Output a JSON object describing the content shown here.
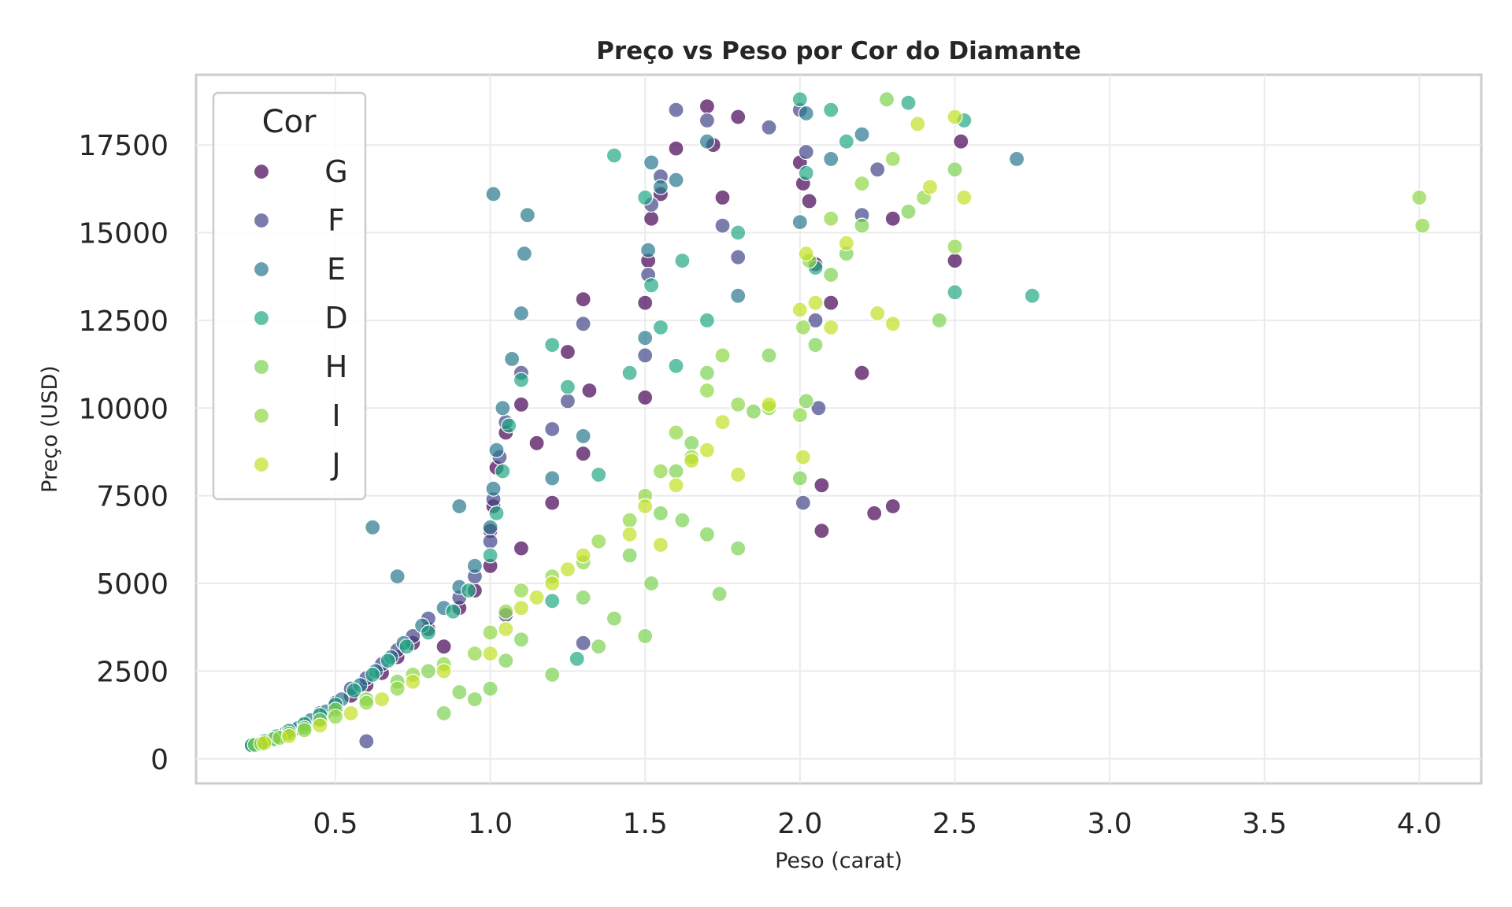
{
  "chart_data": {
    "type": "scatter",
    "title": "Preço vs Peso por Cor do Diamante",
    "xlabel": "Peso (carat)",
    "ylabel": "Preço (USD)",
    "xlim": [
      0.05,
      4.2
    ],
    "ylim": [
      -700,
      19500
    ],
    "xticks": [
      0.5,
      1.0,
      1.5,
      2.0,
      2.5,
      3.0,
      3.5,
      4.0
    ],
    "xtick_labels": [
      "0.5",
      "1.0",
      "1.5",
      "2.0",
      "2.5",
      "3.0",
      "3.5",
      "4.0"
    ],
    "yticks": [
      0,
      2500,
      5000,
      7500,
      10000,
      12500,
      15000,
      17500
    ],
    "ytick_labels": [
      "0",
      "2500",
      "5000",
      "7500",
      "10000",
      "12500",
      "15000",
      "17500"
    ],
    "grid": true,
    "point_alpha": 0.7,
    "legend": {
      "title": "Cor",
      "placement": "upper-left"
    },
    "series": [
      {
        "name": "G",
        "color": "#440154",
        "points": [
          [
            0.23,
            400
          ],
          [
            0.27,
            480
          ],
          [
            0.3,
            560
          ],
          [
            0.33,
            700
          ],
          [
            0.36,
            820
          ],
          [
            0.4,
            950
          ],
          [
            0.45,
            1150
          ],
          [
            0.5,
            1500
          ],
          [
            0.55,
            1800
          ],
          [
            0.6,
            2100
          ],
          [
            0.65,
            2450
          ],
          [
            0.7,
            2900
          ],
          [
            0.75,
            3300
          ],
          [
            0.8,
            3700
          ],
          [
            0.9,
            4300
          ],
          [
            0.95,
            4800
          ],
          [
            1.0,
            5500
          ],
          [
            1.0,
            6500
          ],
          [
            1.01,
            7200
          ],
          [
            1.02,
            8300
          ],
          [
            1.05,
            9300
          ],
          [
            1.1,
            10100
          ],
          [
            1.15,
            9000
          ],
          [
            1.2,
            7300
          ],
          [
            1.25,
            11600
          ],
          [
            1.3,
            13100
          ],
          [
            1.32,
            10500
          ],
          [
            1.5,
            10300
          ],
          [
            1.5,
            13000
          ],
          [
            1.51,
            14200
          ],
          [
            1.52,
            15400
          ],
          [
            1.55,
            16100
          ],
          [
            1.6,
            17400
          ],
          [
            1.7,
            18600
          ],
          [
            1.72,
            17500
          ],
          [
            1.75,
            16000
          ],
          [
            1.8,
            18300
          ],
          [
            2.0,
            17000
          ],
          [
            2.01,
            16400
          ],
          [
            2.03,
            15900
          ],
          [
            2.05,
            14100
          ],
          [
            2.1,
            13000
          ],
          [
            2.2,
            11000
          ],
          [
            2.3,
            15400
          ],
          [
            2.5,
            14200
          ],
          [
            2.52,
            17600
          ],
          [
            2.07,
            7800
          ],
          [
            2.07,
            6500
          ],
          [
            2.24,
            7000
          ],
          [
            2.3,
            7200
          ],
          [
            0.85,
            3200
          ],
          [
            1.1,
            6000
          ],
          [
            1.3,
            8700
          ]
        ]
      },
      {
        "name": "F",
        "color": "#414487",
        "points": [
          [
            0.24,
            420
          ],
          [
            0.28,
            520
          ],
          [
            0.32,
            650
          ],
          [
            0.35,
            780
          ],
          [
            0.4,
            1000
          ],
          [
            0.45,
            1300
          ],
          [
            0.5,
            1600
          ],
          [
            0.55,
            2000
          ],
          [
            0.6,
            2300
          ],
          [
            0.65,
            2700
          ],
          [
            0.7,
            3100
          ],
          [
            0.75,
            3500
          ],
          [
            0.8,
            4000
          ],
          [
            0.9,
            4600
          ],
          [
            0.95,
            5200
          ],
          [
            1.0,
            6200
          ],
          [
            1.01,
            7400
          ],
          [
            1.03,
            8600
          ],
          [
            1.05,
            9600
          ],
          [
            1.1,
            11000
          ],
          [
            1.2,
            9400
          ],
          [
            1.25,
            10200
          ],
          [
            1.3,
            12400
          ],
          [
            1.5,
            11500
          ],
          [
            1.51,
            13800
          ],
          [
            1.52,
            15800
          ],
          [
            1.55,
            16600
          ],
          [
            1.6,
            18500
          ],
          [
            1.7,
            18200
          ],
          [
            1.75,
            15200
          ],
          [
            1.8,
            14300
          ],
          [
            1.9,
            18000
          ],
          [
            2.0,
            18500
          ],
          [
            2.02,
            17300
          ],
          [
            2.05,
            12500
          ],
          [
            2.06,
            10000
          ],
          [
            2.01,
            7300
          ],
          [
            2.2,
            15500
          ],
          [
            2.25,
            16800
          ],
          [
            0.6,
            500
          ],
          [
            1.3,
            3300
          ],
          [
            1.05,
            4100
          ]
        ]
      },
      {
        "name": "E",
        "color": "#2a788e",
        "points": [
          [
            0.23,
            380
          ],
          [
            0.26,
            450
          ],
          [
            0.3,
            600
          ],
          [
            0.34,
            740
          ],
          [
            0.38,
            880
          ],
          [
            0.42,
            1100
          ],
          [
            0.47,
            1350
          ],
          [
            0.52,
            1700
          ],
          [
            0.58,
            2100
          ],
          [
            0.63,
            2500
          ],
          [
            0.68,
            2900
          ],
          [
            0.72,
            3300
          ],
          [
            0.78,
            3800
          ],
          [
            0.85,
            4300
          ],
          [
            0.9,
            4900
          ],
          [
            0.95,
            5500
          ],
          [
            1.0,
            6600
          ],
          [
            1.01,
            7700
          ],
          [
            1.02,
            8800
          ],
          [
            1.04,
            10000
          ],
          [
            1.07,
            11400
          ],
          [
            1.1,
            12700
          ],
          [
            1.11,
            14400
          ],
          [
            1.12,
            15500
          ],
          [
            1.01,
            16100
          ],
          [
            1.2,
            8000
          ],
          [
            1.3,
            9200
          ],
          [
            1.5,
            12000
          ],
          [
            1.51,
            14500
          ],
          [
            1.52,
            17000
          ],
          [
            1.55,
            16300
          ],
          [
            1.6,
            16500
          ],
          [
            1.7,
            17600
          ],
          [
            1.8,
            13200
          ],
          [
            2.0,
            15300
          ],
          [
            2.02,
            18400
          ],
          [
            2.1,
            17100
          ],
          [
            2.2,
            17800
          ],
          [
            2.7,
            17100
          ],
          [
            0.62,
            6600
          ],
          [
            0.9,
            7200
          ],
          [
            0.7,
            5200
          ]
        ]
      },
      {
        "name": "D",
        "color": "#22a884",
        "points": [
          [
            0.23,
            390
          ],
          [
            0.27,
            500
          ],
          [
            0.31,
            640
          ],
          [
            0.35,
            800
          ],
          [
            0.4,
            990
          ],
          [
            0.45,
            1250
          ],
          [
            0.5,
            1550
          ],
          [
            0.56,
            1950
          ],
          [
            0.62,
            2400
          ],
          [
            0.67,
            2800
          ],
          [
            0.73,
            3200
          ],
          [
            0.8,
            3600
          ],
          [
            0.88,
            4200
          ],
          [
            0.93,
            4800
          ],
          [
            1.0,
            5800
          ],
          [
            1.02,
            7000
          ],
          [
            1.04,
            8200
          ],
          [
            1.06,
            9500
          ],
          [
            1.1,
            10800
          ],
          [
            1.2,
            11800
          ],
          [
            1.25,
            10600
          ],
          [
            1.4,
            17200
          ],
          [
            1.5,
            16000
          ],
          [
            1.52,
            13500
          ],
          [
            1.55,
            12300
          ],
          [
            1.6,
            11200
          ],
          [
            1.62,
            14200
          ],
          [
            1.7,
            12500
          ],
          [
            1.8,
            15000
          ],
          [
            2.0,
            18800
          ],
          [
            2.02,
            16700
          ],
          [
            2.05,
            14000
          ],
          [
            2.1,
            18500
          ],
          [
            2.15,
            17600
          ],
          [
            2.35,
            18700
          ],
          [
            2.53,
            18200
          ],
          [
            2.5,
            13300
          ],
          [
            2.75,
            13200
          ],
          [
            1.45,
            11000
          ],
          [
            1.35,
            8100
          ],
          [
            1.2,
            4500
          ],
          [
            1.28,
            2850
          ]
        ]
      },
      {
        "name": "H",
        "color": "#7ad151",
        "points": [
          [
            0.24,
            400
          ],
          [
            0.3,
            560
          ],
          [
            0.35,
            720
          ],
          [
            0.4,
            880
          ],
          [
            0.45,
            1100
          ],
          [
            0.5,
            1400
          ],
          [
            0.6,
            1700
          ],
          [
            0.7,
            2200
          ],
          [
            0.8,
            2500
          ],
          [
            0.85,
            1300
          ],
          [
            0.9,
            1900
          ],
          [
            0.95,
            1700
          ],
          [
            1.0,
            2000
          ],
          [
            1.05,
            2800
          ],
          [
            1.1,
            3400
          ],
          [
            1.2,
            2400
          ],
          [
            1.3,
            4600
          ],
          [
            1.35,
            3200
          ],
          [
            1.4,
            4000
          ],
          [
            1.45,
            5800
          ],
          [
            1.5,
            3500
          ],
          [
            1.52,
            5000
          ],
          [
            1.55,
            7000
          ],
          [
            1.6,
            8200
          ],
          [
            1.62,
            6800
          ],
          [
            1.7,
            6400
          ],
          [
            1.74,
            4700
          ],
          [
            1.8,
            6000
          ],
          [
            1.85,
            9900
          ],
          [
            1.9,
            11500
          ],
          [
            2.0,
            8000
          ],
          [
            2.02,
            10200
          ],
          [
            2.05,
            11800
          ],
          [
            2.1,
            13800
          ],
          [
            2.15,
            14400
          ],
          [
            2.2,
            15200
          ],
          [
            2.28,
            18800
          ],
          [
            2.35,
            15600
          ],
          [
            2.45,
            12500
          ],
          [
            2.5,
            16800
          ],
          [
            1.65,
            9000
          ],
          [
            1.7,
            11000
          ]
        ]
      },
      {
        "name": "I",
        "color": "#8fd744",
        "points": [
          [
            0.26,
            430
          ],
          [
            0.32,
            600
          ],
          [
            0.4,
            820
          ],
          [
            0.5,
            1200
          ],
          [
            0.6,
            1600
          ],
          [
            0.7,
            2000
          ],
          [
            0.75,
            2400
          ],
          [
            0.85,
            2700
          ],
          [
            0.95,
            3000
          ],
          [
            1.0,
            3600
          ],
          [
            1.05,
            4200
          ],
          [
            1.1,
            4800
          ],
          [
            1.2,
            5200
          ],
          [
            1.3,
            5600
          ],
          [
            1.35,
            6200
          ],
          [
            1.45,
            6800
          ],
          [
            1.5,
            7500
          ],
          [
            1.55,
            8200
          ],
          [
            1.6,
            9300
          ],
          [
            1.65,
            8600
          ],
          [
            1.7,
            10500
          ],
          [
            1.75,
            11500
          ],
          [
            1.8,
            10100
          ],
          [
            1.9,
            10000
          ],
          [
            2.0,
            9800
          ],
          [
            2.01,
            12300
          ],
          [
            2.03,
            14200
          ],
          [
            2.1,
            15400
          ],
          [
            2.2,
            16400
          ],
          [
            2.3,
            17100
          ],
          [
            2.4,
            16000
          ],
          [
            2.5,
            14600
          ],
          [
            4.0,
            16000
          ],
          [
            4.01,
            15200
          ]
        ]
      },
      {
        "name": "J",
        "color": "#c2df23",
        "points": [
          [
            0.27,
            450
          ],
          [
            0.35,
            650
          ],
          [
            0.45,
            950
          ],
          [
            0.55,
            1300
          ],
          [
            0.65,
            1700
          ],
          [
            0.75,
            2200
          ],
          [
            0.85,
            2500
          ],
          [
            1.0,
            3000
          ],
          [
            1.05,
            3700
          ],
          [
            1.1,
            4300
          ],
          [
            1.15,
            4600
          ],
          [
            1.2,
            5000
          ],
          [
            1.25,
            5400
          ],
          [
            1.3,
            5800
          ],
          [
            1.45,
            6400
          ],
          [
            1.5,
            7200
          ],
          [
            1.55,
            6100
          ],
          [
            1.6,
            7800
          ],
          [
            1.65,
            8500
          ],
          [
            1.7,
            8800
          ],
          [
            1.75,
            9600
          ],
          [
            1.8,
            8100
          ],
          [
            1.9,
            10100
          ],
          [
            2.0,
            12800
          ],
          [
            2.01,
            8600
          ],
          [
            2.02,
            14400
          ],
          [
            2.05,
            13000
          ],
          [
            2.1,
            12300
          ],
          [
            2.15,
            14700
          ],
          [
            2.25,
            12700
          ],
          [
            2.3,
            12400
          ],
          [
            2.38,
            18100
          ],
          [
            2.42,
            16300
          ],
          [
            2.5,
            18300
          ],
          [
            2.53,
            16000
          ]
        ]
      }
    ]
  }
}
